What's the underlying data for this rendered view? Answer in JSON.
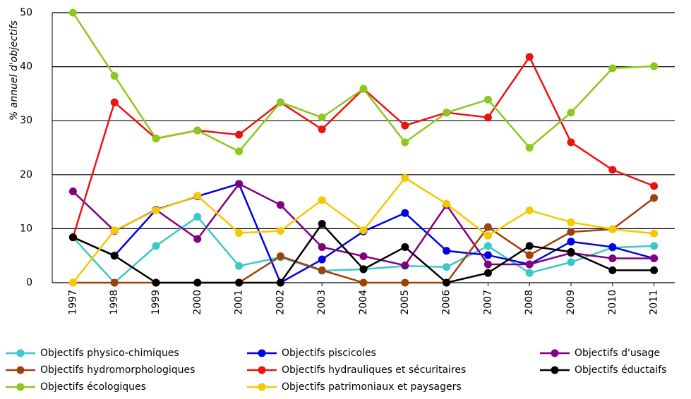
{
  "chart_data": {
    "type": "line",
    "y_label": "% annuel d'objectifs",
    "categories": [
      "1997",
      "1998",
      "1999",
      "2000",
      "2001",
      "2002",
      "2003",
      "2004",
      "2005",
      "2006",
      "2007",
      "2008",
      "2009",
      "2010",
      "2011"
    ],
    "ylim": [
      0,
      50
    ],
    "yticks": [
      0,
      10,
      20,
      30,
      40,
      50
    ],
    "grid": true,
    "series": [
      {
        "name": "Objectifs physico-chimiques",
        "color": "#3cc8c8",
        "values": [
          8.4,
          0,
          6.8,
          12.2,
          3.1,
          4.7,
          2.2,
          2.5,
          3.1,
          2.9,
          6.8,
          1.8,
          3.8,
          6.5,
          6.8
        ]
      },
      {
        "name": "Objectifs piscicoles",
        "color": "#0000e6",
        "values": [
          8.4,
          5,
          13.5,
          16,
          18.3,
          0,
          4.3,
          9.5,
          12.9,
          5.9,
          5.1,
          3.4,
          7.6,
          6.6,
          4.5
        ]
      },
      {
        "name": "Objectifs d'usage",
        "color": "#800080",
        "values": [
          16.9,
          9.6,
          13.5,
          8.1,
          18.3,
          14.4,
          6.6,
          4.9,
          3.2,
          14.4,
          3.4,
          3.4,
          5.5,
          4.5,
          4.5
        ]
      },
      {
        "name": "Objectifs hydromorphologiques",
        "color": "#a0400a",
        "values": [
          0,
          0,
          0,
          0,
          0,
          4.9,
          2.3,
          0,
          0,
          0,
          10.3,
          5.1,
          9.4,
          9.9,
          15.7
        ]
      },
      {
        "name": "Objectifs hydrauliques et sécuritaires",
        "color": "#ee1111",
        "values": [
          8.4,
          33.4,
          26.7,
          28.2,
          27.4,
          33.4,
          28.4,
          35.9,
          29.1,
          31.5,
          30.6,
          41.8,
          26,
          20.9,
          17.9
        ]
      },
      {
        "name": "Objectifs éductaifs",
        "color": "#000000",
        "values": [
          8.4,
          5,
          0,
          0,
          0,
          0,
          10.9,
          2.5,
          6.6,
          0,
          1.8,
          6.8,
          5.7,
          2.3,
          2.3
        ]
      },
      {
        "name": "Objectifs écologiques",
        "color": "#8cc81e",
        "values": [
          50,
          38.3,
          26.7,
          28.2,
          24.3,
          33.4,
          30.6,
          35.9,
          26,
          31.5,
          33.9,
          25,
          31.5,
          39.7,
          40.1
        ]
      },
      {
        "name": "Objectifs patrimoniaux et paysagers",
        "color": "#f5c800",
        "values": [
          0,
          9.7,
          13.4,
          16.1,
          9.2,
          9.6,
          15.3,
          9.7,
          19.4,
          14.6,
          8.7,
          13.4,
          11.2,
          9.9,
          9.1
        ]
      }
    ]
  }
}
